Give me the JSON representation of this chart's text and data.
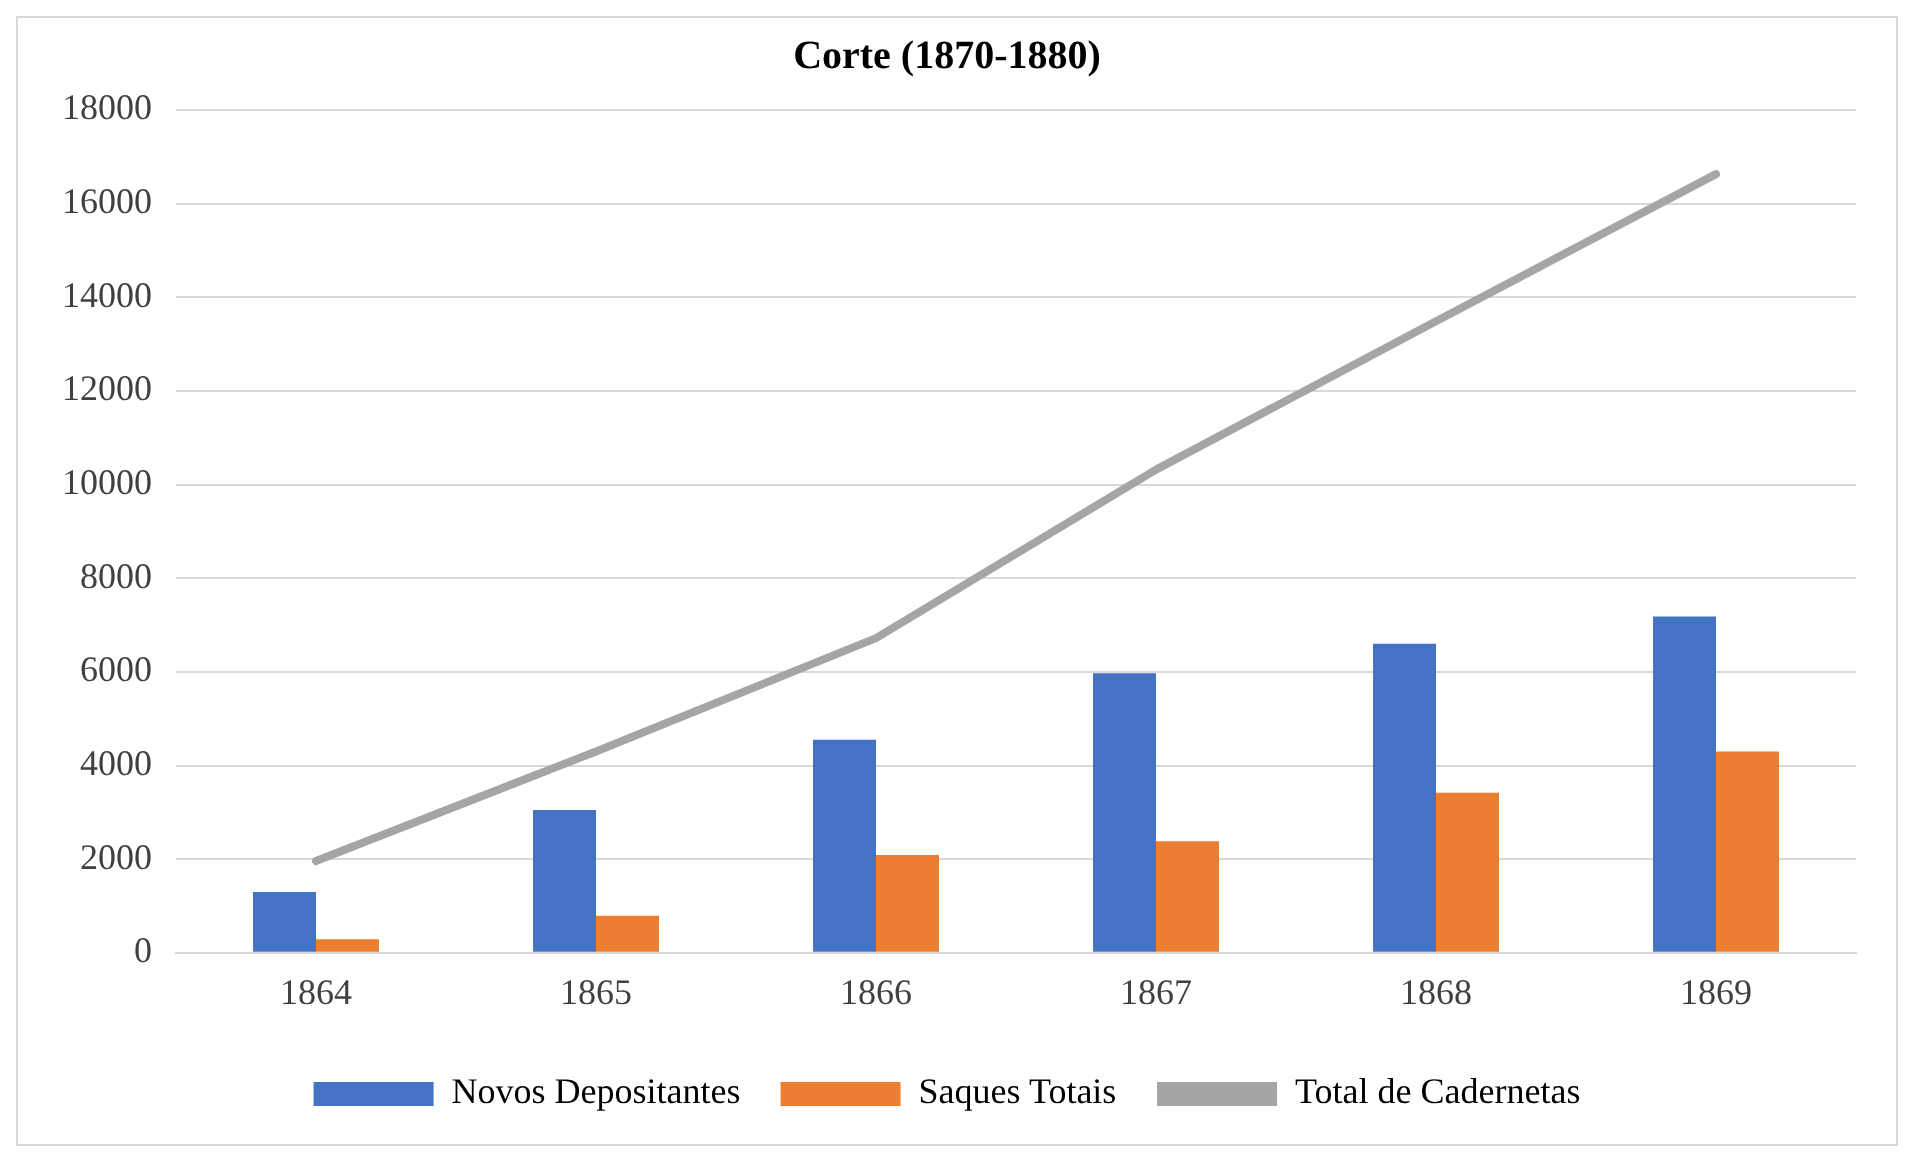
{
  "chart_data": {
    "type": "bar",
    "title": "Corte (1870-1880)",
    "categories": [
      "1864",
      "1865",
      "1866",
      "1867",
      "1868",
      "1869"
    ],
    "series": [
      {
        "name": "Novos Depositantes",
        "color": "#4472c4",
        "values": [
          1300,
          3050,
          4550,
          5970,
          6600,
          7180
        ]
      },
      {
        "name": "Saques Totais",
        "color": "#ed7d31",
        "values": [
          290,
          790,
          2090,
          2380,
          3420,
          4300
        ]
      },
      {
        "name": "Total de Cadernetas",
        "type": "line",
        "color": "#a5a5a5",
        "values": [
          1960,
          4300,
          6720,
          10320,
          13490,
          16630
        ]
      }
    ],
    "ylim": [
      0,
      18000
    ],
    "yticks": [
      0,
      2000,
      4000,
      6000,
      8000,
      10000,
      12000,
      14000,
      16000,
      18000
    ],
    "grid": "y",
    "legend": "bottom",
    "marker": "none"
  }
}
